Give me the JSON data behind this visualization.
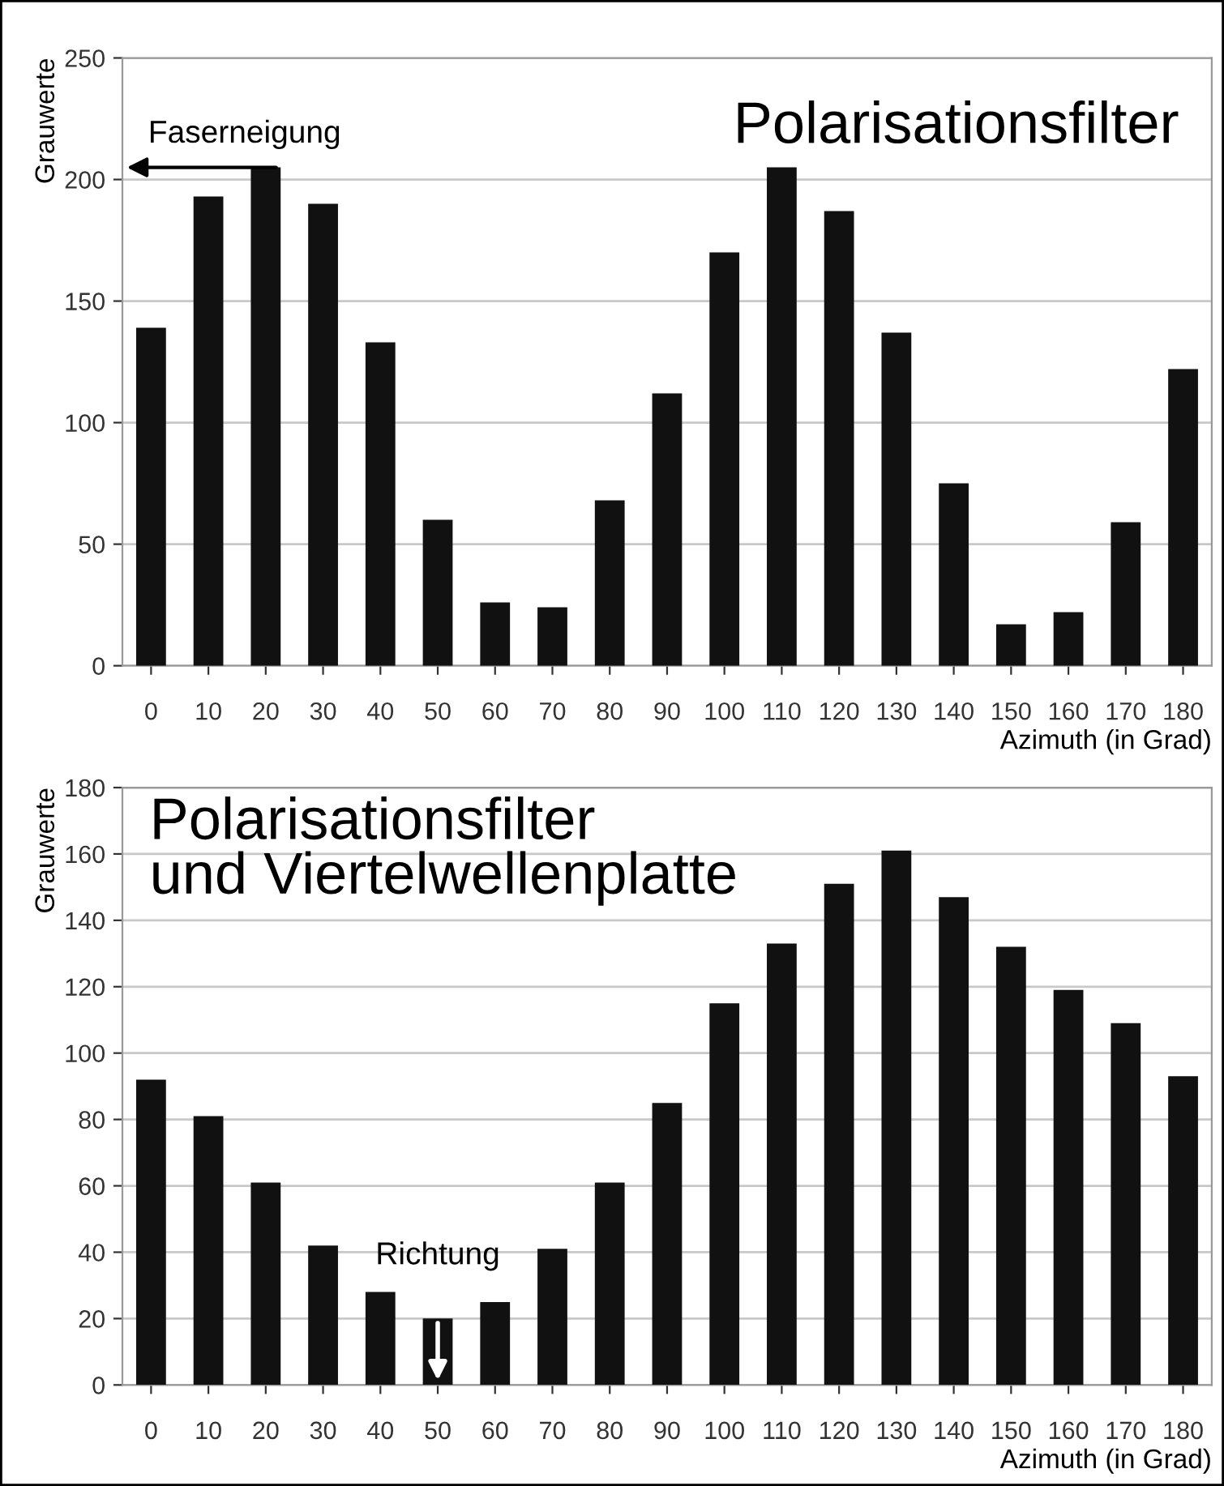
{
  "chart_data": [
    {
      "type": "bar",
      "title": "Polarisationsfilter",
      "xlabel": "Azimuth (in Grad)",
      "ylabel": "Grauwerte",
      "categories": [
        "0",
        "10",
        "20",
        "30",
        "40",
        "50",
        "60",
        "70",
        "80",
        "90",
        "100",
        "110",
        "120",
        "130",
        "140",
        "150",
        "160",
        "170",
        "180"
      ],
      "values": [
        139,
        193,
        205,
        190,
        133,
        60,
        26,
        24,
        68,
        112,
        170,
        205,
        187,
        137,
        75,
        17,
        22,
        59,
        122
      ],
      "color": "#111111",
      "ylim": [
        0,
        250
      ],
      "yticks": [
        0,
        50,
        100,
        150,
        200,
        250
      ],
      "grid": "y",
      "legend": false,
      "annotations": [
        {
          "text": "Faserneigung",
          "x": "20",
          "y": 205
        }
      ]
    },
    {
      "type": "bar",
      "title": "Polarisationsfilter\nund Viertelwellenplatte",
      "xlabel": "Azimuth (in Grad)",
      "ylabel": "Grauwerte",
      "categories": [
        "0",
        "10",
        "20",
        "30",
        "40",
        "50",
        "60",
        "70",
        "80",
        "90",
        "100",
        "110",
        "120",
        "130",
        "140",
        "150",
        "160",
        "170",
        "180"
      ],
      "values": [
        92,
        81,
        61,
        42,
        28,
        20,
        25,
        41,
        61,
        85,
        115,
        133,
        151,
        161,
        147,
        132,
        119,
        109,
        93
      ],
      "color": "#111111",
      "ylim": [
        0,
        180
      ],
      "yticks": [
        0,
        20,
        40,
        60,
        80,
        100,
        120,
        140,
        160,
        180
      ],
      "grid": "y",
      "legend": false,
      "annotations": [
        {
          "text": "Richtung",
          "x": "50",
          "y": 20
        }
      ]
    }
  ]
}
